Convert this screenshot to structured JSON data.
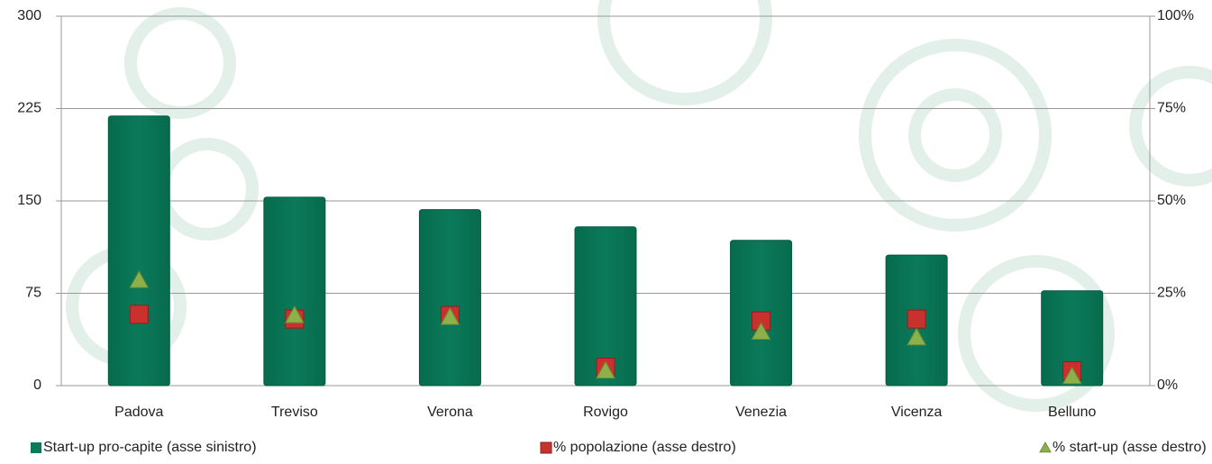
{
  "chart_data": {
    "type": "bar",
    "categories": [
      "Padova",
      "Treviso",
      "Verona",
      "Rovigo",
      "Venezia",
      "Vicenza",
      "Belluno"
    ],
    "series": [
      {
        "name": "Start-up pro-capite (asse sinistro)",
        "color": "#0b7a5a",
        "type": "bar",
        "values": [
          219,
          153,
          143,
          129,
          118,
          106,
          77
        ]
      },
      {
        "name": "% popolazione (asse destro)",
        "color": "#c8322e",
        "type": "scatter",
        "marker": "square",
        "axis": "y2",
        "values": [
          19.3,
          18,
          19,
          5,
          17.5,
          18,
          4
        ]
      },
      {
        "name": "% start-up (asse destro)",
        "color": "#8db04a",
        "type": "scatter",
        "marker": "triangle",
        "axis": "y2",
        "values": [
          28.5,
          19,
          18.5,
          4,
          14.5,
          13,
          2.5
        ]
      }
    ],
    "ylim": [
      0,
      300
    ],
    "yticks": [
      0,
      75,
      150,
      225,
      300
    ],
    "y2lim": [
      0,
      100
    ],
    "y2ticks": [
      {
        "value": 0,
        "label": "0%"
      },
      {
        "value": 25,
        "label": "25%"
      },
      {
        "value": 50,
        "label": "50%"
      },
      {
        "value": 75,
        "label": "75%"
      },
      {
        "value": 100,
        "label": "100%"
      }
    ],
    "grid": true,
    "legend": "bottom"
  }
}
